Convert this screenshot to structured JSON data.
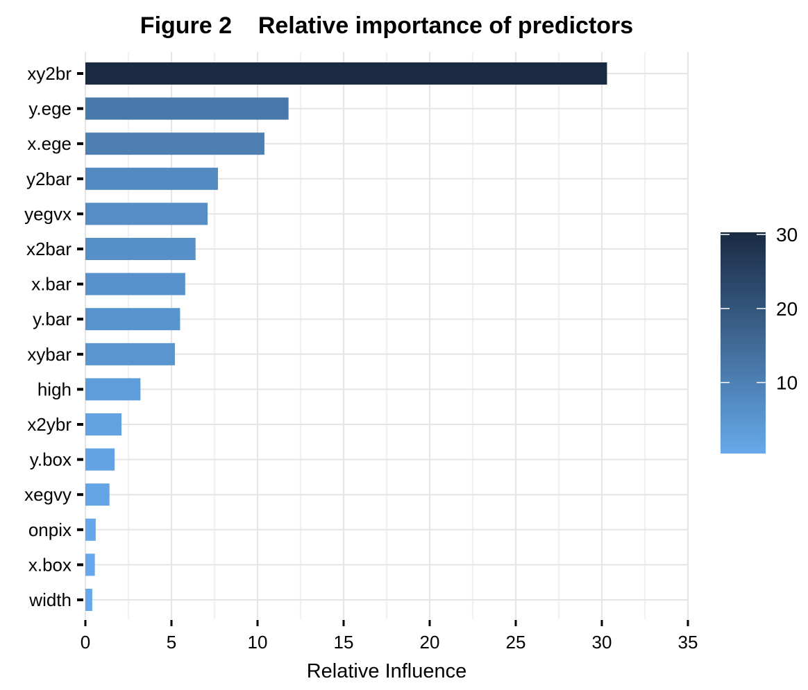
{
  "chart_data": {
    "type": "bar",
    "orientation": "horizontal",
    "title": "Figure 2    Relative importance of predictors",
    "xlabel": "Relative Influence",
    "ylabel": "",
    "xlim": [
      0,
      35
    ],
    "x_ticks": [
      0,
      5,
      10,
      15,
      20,
      25,
      30,
      35
    ],
    "grid": true,
    "categories": [
      "xy2br",
      "y.ege",
      "x.ege",
      "y2bar",
      "yegvx",
      "x2bar",
      "x.bar",
      "y.bar",
      "xybar",
      "high",
      "x2ybr",
      "y.box",
      "xegvy",
      "onpix",
      "x.box",
      "width"
    ],
    "values": [
      30.3,
      11.8,
      10.4,
      7.7,
      7.1,
      6.4,
      5.8,
      5.5,
      5.2,
      3.2,
      2.1,
      1.7,
      1.4,
      0.6,
      0.55,
      0.4
    ],
    "legend": {
      "position": "right",
      "type": "colorbar",
      "ticks": [
        10,
        20,
        30
      ],
      "range": [
        0.4,
        30.3
      ],
      "color_low": "#66A9EA",
      "color_high": "#1A2A42"
    }
  }
}
